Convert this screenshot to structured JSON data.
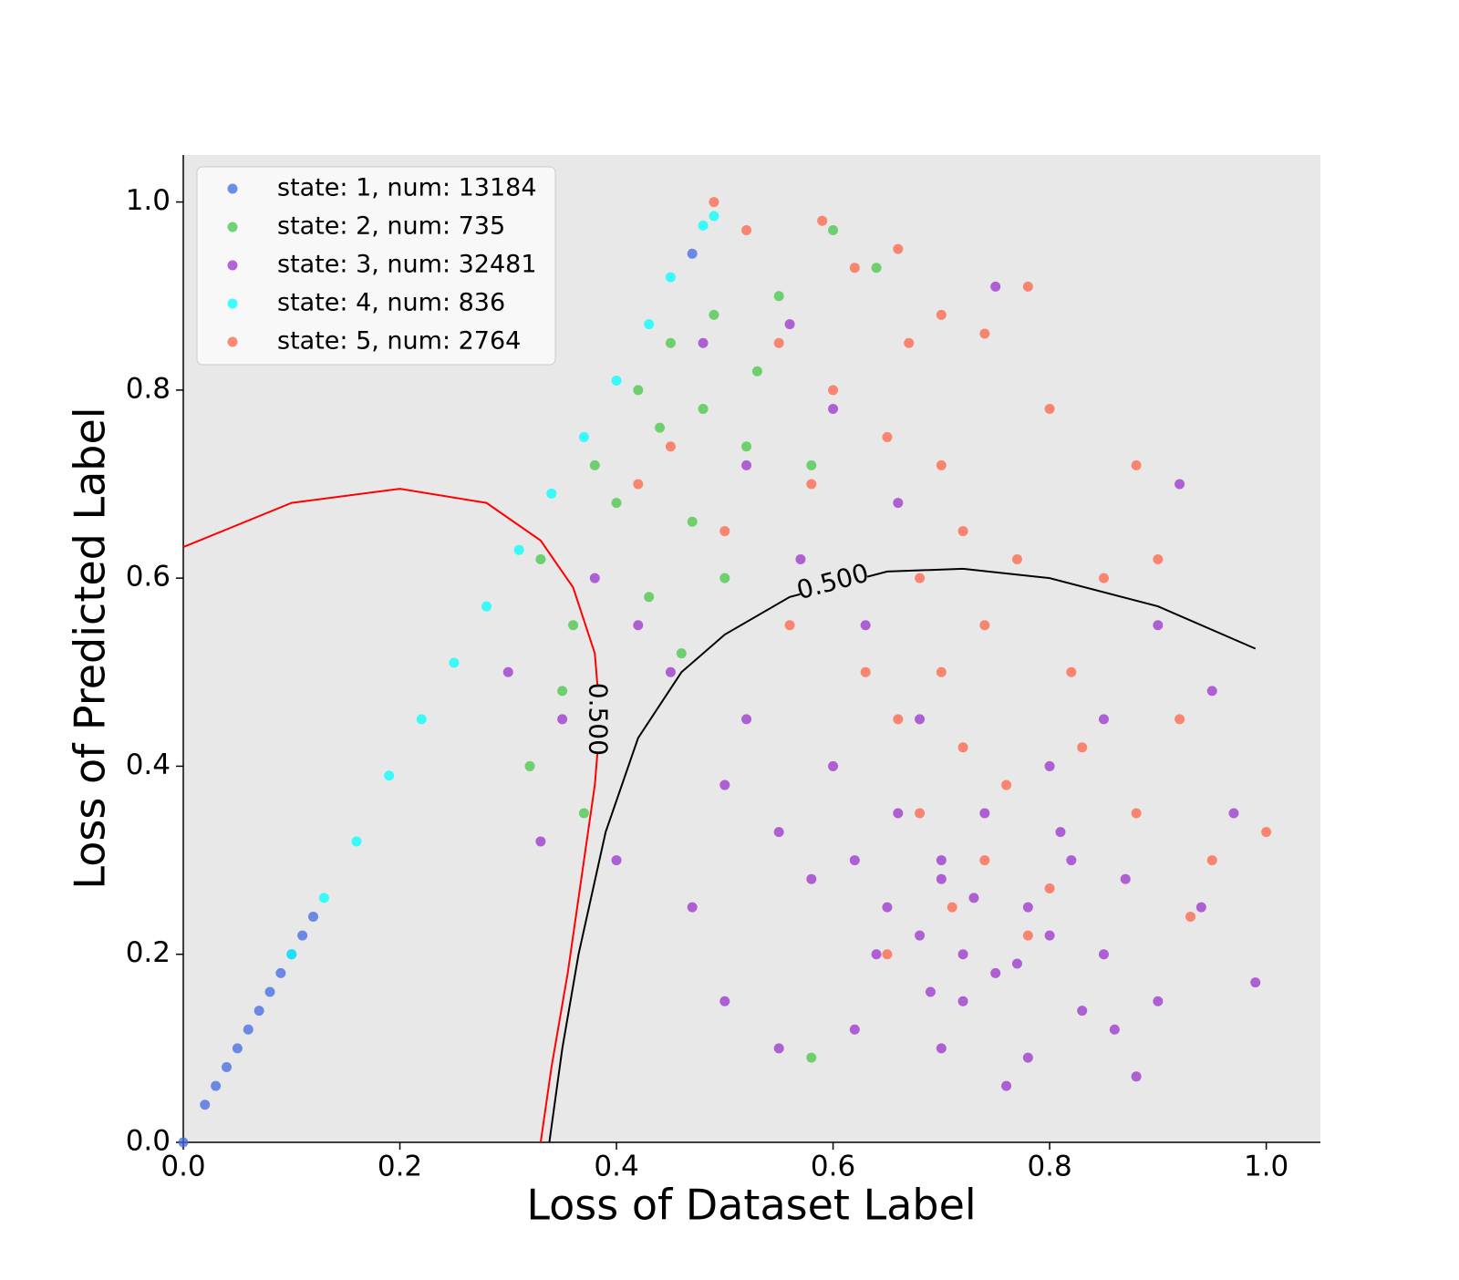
{
  "chart_data": {
    "type": "scatter",
    "x_label": "Loss of Dataset Label",
    "y_label": "Loss of Predicted Label",
    "xlim": [
      0,
      1.05
    ],
    "ylim": [
      0,
      1.05
    ],
    "xticks": [
      {
        "value": 0,
        "label": "0.0"
      },
      0.2,
      0.4,
      0.6,
      0.8,
      {
        "value": 1,
        "label": "1.0"
      }
    ],
    "yticks": [
      {
        "value": 0,
        "label": "0.0"
      },
      0.2,
      0.4,
      0.6,
      0.8,
      {
        "value": 1,
        "label": "1.0"
      }
    ],
    "legend": "upper left",
    "series": [
      {
        "name": "state: 1, num: 13184",
        "color": "#4169e1",
        "x": [
          0,
          0.02,
          0.03,
          0.04,
          0.05,
          0.06,
          0.07,
          0.08,
          0.09,
          0.1,
          0.11,
          0.12,
          0.47
        ],
        "y": [
          0,
          0.04,
          0.06,
          0.08,
          0.1,
          0.12,
          0.14,
          0.16,
          0.18,
          0.2,
          0.22,
          0.24,
          0.945
        ]
      },
      {
        "name": "state: 2, num: 735",
        "color": "#44c744",
        "x": [
          0.33,
          0.36,
          0.38,
          0.4,
          0.42,
          0.44,
          0.45,
          0.47,
          0.49,
          0.5,
          0.52,
          0.35,
          0.32,
          0.46,
          0.55,
          0.58,
          0.6,
          0.64,
          0.58,
          0.39,
          0.48,
          0.43,
          0.37,
          0.53
        ],
        "y": [
          0.62,
          0.55,
          0.72,
          0.68,
          0.8,
          0.76,
          0.85,
          0.66,
          0.88,
          0.6,
          0.74,
          0.48,
          0.4,
          0.52,
          0.9,
          0.72,
          0.97,
          0.93,
          0.09,
          0.42,
          0.78,
          0.58,
          0.35,
          0.82
        ]
      },
      {
        "name": "state: 3, num: 32481",
        "color": "#9932cc",
        "x": [
          0.62,
          0.65,
          0.68,
          0.7,
          0.72,
          0.75,
          0.78,
          0.8,
          0.82,
          0.85,
          0.66,
          0.6,
          0.58,
          0.55,
          0.52,
          0.5,
          0.45,
          0.42,
          0.38,
          0.35,
          0.3,
          0.33,
          0.4,
          0.47,
          0.5,
          0.55,
          0.62,
          0.7,
          0.78,
          0.86,
          0.9,
          0.94,
          0.97,
          0.95,
          0.9,
          0.88,
          0.76,
          0.92,
          0.85,
          0.8,
          0.74,
          0.68,
          0.63,
          0.57,
          0.52,
          0.48,
          0.56,
          0.6,
          0.66,
          0.72,
          0.83,
          0.87,
          0.99,
          0.75,
          0.7,
          0.73,
          0.77,
          0.64,
          0.81,
          0.69
        ],
        "y": [
          0.3,
          0.25,
          0.22,
          0.28,
          0.2,
          0.18,
          0.25,
          0.22,
          0.3,
          0.2,
          0.35,
          0.4,
          0.28,
          0.33,
          0.45,
          0.38,
          0.5,
          0.55,
          0.6,
          0.45,
          0.5,
          0.32,
          0.3,
          0.25,
          0.15,
          0.1,
          0.12,
          0.1,
          0.09,
          0.12,
          0.15,
          0.25,
          0.35,
          0.48,
          0.55,
          0.07,
          0.06,
          0.7,
          0.45,
          0.4,
          0.35,
          0.45,
          0.55,
          0.62,
          0.72,
          0.85,
          0.87,
          0.78,
          0.68,
          0.15,
          0.14,
          0.28,
          0.17,
          0.91,
          0.3,
          0.26,
          0.19,
          0.2,
          0.33,
          0.16
        ]
      },
      {
        "name": "state: 4, num: 836",
        "color": "#00ffff",
        "x": [
          0.1,
          0.13,
          0.16,
          0.19,
          0.22,
          0.25,
          0.28,
          0.31,
          0.34,
          0.37,
          0.4,
          0.43,
          0.45,
          0.48,
          0.49
        ],
        "y": [
          0.2,
          0.26,
          0.32,
          0.39,
          0.45,
          0.51,
          0.57,
          0.63,
          0.69,
          0.75,
          0.81,
          0.87,
          0.92,
          0.975,
          0.985
        ]
      },
      {
        "name": "state: 5, num: 2764",
        "color": "#ff6347",
        "x": [
          0.49,
          0.59,
          0.52,
          0.62,
          0.66,
          0.7,
          0.74,
          0.78,
          0.55,
          0.6,
          0.65,
          0.7,
          0.72,
          0.68,
          0.74,
          0.7,
          0.66,
          0.72,
          0.76,
          0.68,
          0.74,
          0.8,
          0.71,
          0.78,
          0.82,
          0.85,
          0.88,
          0.9,
          0.8,
          0.58,
          0.5,
          0.45,
          0.42,
          0.62,
          0.92,
          0.95,
          1.0,
          0.93,
          0.65,
          0.63,
          0.77,
          0.83,
          0.67,
          0.56,
          0.88
        ],
        "y": [
          1.0,
          0.98,
          0.97,
          0.93,
          0.95,
          0.88,
          0.86,
          0.91,
          0.85,
          0.8,
          0.75,
          0.72,
          0.65,
          0.6,
          0.55,
          0.5,
          0.45,
          0.42,
          0.38,
          0.35,
          0.3,
          0.27,
          0.25,
          0.22,
          0.5,
          0.6,
          0.72,
          0.62,
          0.78,
          0.7,
          0.65,
          0.74,
          0.7,
          0.6,
          0.45,
          0.3,
          0.33,
          0.24,
          0.2,
          0.5,
          0.62,
          0.42,
          0.85,
          0.55,
          0.35
        ]
      }
    ],
    "contours": [
      {
        "label": "0.500",
        "color": "#ff0000",
        "x": [
          0,
          0.1,
          0.2,
          0.28,
          0.33,
          0.36,
          0.38,
          0.385,
          0.38,
          0.37,
          0.355,
          0.34,
          0.33
        ],
        "y": [
          0.633,
          0.68,
          0.695,
          0.68,
          0.64,
          0.59,
          0.52,
          0.45,
          0.38,
          0.3,
          0.18,
          0.08,
          0
        ]
      },
      {
        "label": "0.500",
        "color": "#000000",
        "x": [
          0.338,
          0.35,
          0.365,
          0.39,
          0.42,
          0.46,
          0.5,
          0.56,
          0.65,
          0.72,
          0.8,
          0.9,
          0.99
        ],
        "y": [
          0,
          0.1,
          0.2,
          0.33,
          0.43,
          0.5,
          0.54,
          0.58,
          0.607,
          0.61,
          0.6,
          0.57,
          0.525
        ]
      }
    ]
  }
}
